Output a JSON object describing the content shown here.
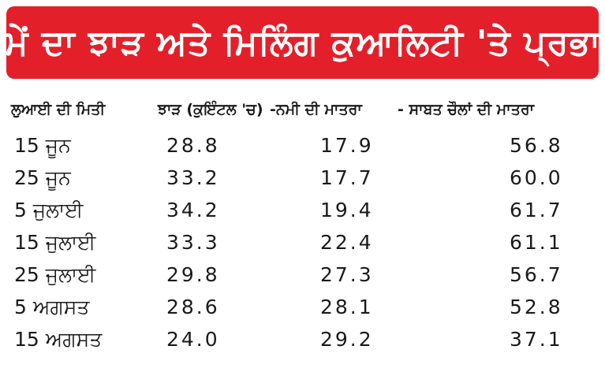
{
  "title": "ਸਮੇਂ ਦਾ ਝਾੜ ਅਤੇ ਮਿਲਿੰਗ ਕੁਆਲਿਟੀ  'ਤੇ ਪ੍ਰਭਾਵ",
  "colors": {
    "banner": "#e3202a",
    "banner_text": "#ffffff",
    "text": "#1a1a1a"
  },
  "table": {
    "headers": {
      "date": "ਲੁਆਈ ਦੀ ਮਿਤੀ",
      "yield": "ਝਾੜ (ਕੁਇੰਟਲ 'ਚ)",
      "moisture": "-ਨਮੀ ਦੀ ਮਾਤਰਾ",
      "grain": "- ਸਾਬਤ ਚੌਲਾਂ ਦੀ ਮਾਤਰਾ"
    },
    "rows": [
      {
        "date": "15 ਜੂਨ",
        "yield": "28.8",
        "moisture": "17.9",
        "grain": "56.8"
      },
      {
        "date": "25 ਜੂਨ",
        "yield": "33.2",
        "moisture": "17.7",
        "grain": "60.0"
      },
      {
        "date": "5 ਜੁਲਾਈ",
        "yield": "34.2",
        "moisture": "19.4",
        "grain": "61.7"
      },
      {
        "date": "15 ਜੁਲਾਈ",
        "yield": "33.3",
        "moisture": "22.4",
        "grain": "61.1"
      },
      {
        "date": "25 ਜੁਲਾਈ",
        "yield": "29.8",
        "moisture": "27.3",
        "grain": "56.7"
      },
      {
        "date": "5 ਅਗਸਤ",
        "yield": "28.6",
        "moisture": "28.1",
        "grain": "52.8"
      },
      {
        "date": "15 ਅਗਸਤ",
        "yield": "24.0",
        "moisture": "29.2",
        "grain": "37.1"
      }
    ]
  }
}
